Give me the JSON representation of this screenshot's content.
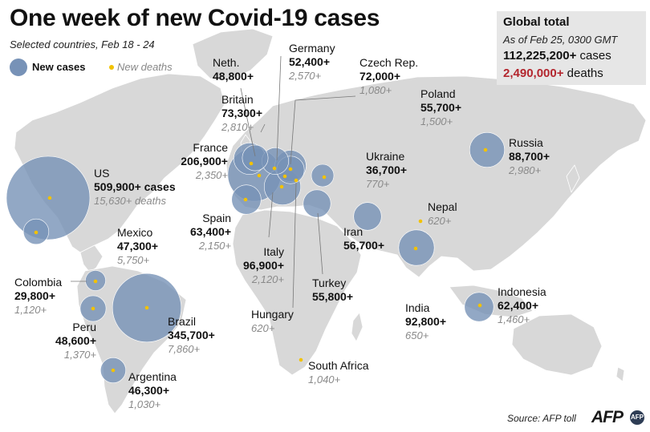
{
  "title": "One week of new Covid-19 cases",
  "subtitle": "Selected countries, Feb 18 - 24",
  "legend": {
    "cases_label": "New cases",
    "deaths_label": "New deaths"
  },
  "global_total": {
    "heading": "Global total",
    "as_of": "As of Feb 25, 0300 GMT",
    "cases_value": "112,225,200+",
    "cases_word": "cases",
    "deaths_value": "2,490,000+",
    "deaths_word": "deaths"
  },
  "colors": {
    "circle": "#7792b7",
    "death_dot": "#f2c200",
    "land": "#d8d8d8",
    "deaths_total": "#b3262e",
    "logo_badge": "#2e3d55"
  },
  "countries": {
    "us": {
      "name": "US",
      "cases": "509,900+ cases",
      "deaths": "15,630+ deaths",
      "new_cases": 509900,
      "new_deaths": 15630
    },
    "mexico": {
      "name": "Mexico",
      "cases": "47,300+",
      "deaths": "5,750+",
      "new_cases": 47300,
      "new_deaths": 5750
    },
    "colombia": {
      "name": "Colombia",
      "cases": "29,800+",
      "deaths": "1,120+",
      "new_cases": 29800,
      "new_deaths": 1120
    },
    "peru": {
      "name": "Peru",
      "cases": "48,600+",
      "deaths": "1,370+",
      "new_cases": 48600,
      "new_deaths": 1370
    },
    "brazil": {
      "name": "Brazil",
      "cases": "345,700+",
      "deaths": "7,860+",
      "new_cases": 345700,
      "new_deaths": 7860
    },
    "argentina": {
      "name": "Argentina",
      "cases": "46,300+",
      "deaths": "1,030+",
      "new_cases": 46300,
      "new_deaths": 1030
    },
    "neth": {
      "name": "Neth.",
      "cases": "48,800+",
      "new_cases": 48800
    },
    "germany": {
      "name": "Germany",
      "cases": "52,400+",
      "deaths": "2,570+",
      "new_cases": 52400,
      "new_deaths": 2570
    },
    "czech": {
      "name": "Czech Rep.",
      "cases": "72,000+",
      "deaths": "1,080+",
      "new_cases": 72000,
      "new_deaths": 1080
    },
    "britain": {
      "name": "Britain",
      "cases": "73,300+",
      "deaths": "2,810+",
      "new_cases": 73300,
      "new_deaths": 2810
    },
    "france": {
      "name": "France",
      "cases": "206,900+",
      "deaths": "2,350+",
      "new_cases": 206900,
      "new_deaths": 2350
    },
    "spain": {
      "name": "Spain",
      "cases": "63,400+",
      "deaths": "2,150+",
      "new_cases": 63400,
      "new_deaths": 2150
    },
    "italy": {
      "name": "Italy",
      "cases": "96,900+",
      "deaths": "2,120+",
      "new_cases": 96900,
      "new_deaths": 2120
    },
    "hungary": {
      "name": "Hungary",
      "deaths": "620+",
      "new_deaths": 620
    },
    "poland": {
      "name": "Poland",
      "cases": "55,700+",
      "deaths": "1,500+",
      "new_cases": 55700,
      "new_deaths": 1500
    },
    "ukraine": {
      "name": "Ukraine",
      "cases": "36,700+",
      "deaths": "770+",
      "new_cases": 36700,
      "new_deaths": 770
    },
    "turkey": {
      "name": "Turkey",
      "cases": "55,800+",
      "new_cases": 55800
    },
    "russia": {
      "name": "Russia",
      "cases": "88,700+",
      "deaths": "2,980+",
      "new_cases": 88700,
      "new_deaths": 2980
    },
    "iran": {
      "name": "Iran",
      "cases": "56,700+",
      "new_cases": 56700
    },
    "nepal": {
      "name": "Nepal",
      "deaths": "620+",
      "new_deaths": 620
    },
    "india": {
      "name": "India",
      "cases": "92,800+",
      "deaths": "650+",
      "new_cases": 92800,
      "new_deaths": 650
    },
    "indonesia": {
      "name": "Indonesia",
      "cases": "62,400+",
      "deaths": "1,460+",
      "new_cases": 62400,
      "new_deaths": 1460
    },
    "south_africa": {
      "name": "South Africa",
      "deaths": "1,040+",
      "new_deaths": 1040
    }
  },
  "source": "Source: AFP toll",
  "logo": {
    "text": "AFP",
    "badge": "AFP"
  }
}
